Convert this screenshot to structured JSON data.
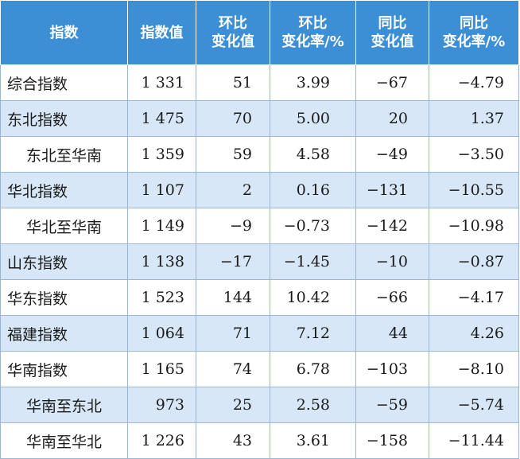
{
  "headers": [
    {
      "line1": "指数",
      "line2": ""
    },
    {
      "line1": "指数值",
      "line2": ""
    },
    {
      "line1": "环比",
      "line2": "变化值"
    },
    {
      "line1": "环比",
      "line2": "变化率/%"
    },
    {
      "line1": "同比",
      "line2": "变化值"
    },
    {
      "line1": "同比",
      "line2": "变化率/%"
    }
  ],
  "rows": [
    {
      "name": "综合指数",
      "sub": false,
      "value": "1 331",
      "mom_change": "51",
      "mom_rate": "3.99",
      "yoy_change": "−67",
      "yoy_rate": "−4.79"
    },
    {
      "name": "东北指数",
      "sub": false,
      "value": "1 475",
      "mom_change": "70",
      "mom_rate": "5.00",
      "yoy_change": "20",
      "yoy_rate": "1.37"
    },
    {
      "name": "东北至华南",
      "sub": true,
      "value": "1 359",
      "mom_change": "59",
      "mom_rate": "4.58",
      "yoy_change": "−49",
      "yoy_rate": "−3.50"
    },
    {
      "name": "华北指数",
      "sub": false,
      "value": "1 107",
      "mom_change": "2",
      "mom_rate": "0.16",
      "yoy_change": "−131",
      "yoy_rate": "−10.55"
    },
    {
      "name": "华北至华南",
      "sub": true,
      "value": "1 149",
      "mom_change": "−9",
      "mom_rate": "−0.73",
      "yoy_change": "−142",
      "yoy_rate": "−10.98"
    },
    {
      "name": "山东指数",
      "sub": false,
      "value": "1 138",
      "mom_change": "−17",
      "mom_rate": "−1.45",
      "yoy_change": "−10",
      "yoy_rate": "−0.87"
    },
    {
      "name": "华东指数",
      "sub": false,
      "value": "1 523",
      "mom_change": "144",
      "mom_rate": "10.42",
      "yoy_change": "−66",
      "yoy_rate": "−4.17"
    },
    {
      "name": "福建指数",
      "sub": false,
      "value": "1 064",
      "mom_change": "71",
      "mom_rate": "7.12",
      "yoy_change": "44",
      "yoy_rate": "4.26"
    },
    {
      "name": "华南指数",
      "sub": false,
      "value": "1 165",
      "mom_change": "74",
      "mom_rate": "6.78",
      "yoy_change": "−103",
      "yoy_rate": "−8.10"
    },
    {
      "name": "华南至东北",
      "sub": true,
      "value": "973",
      "mom_change": "25",
      "mom_rate": "2.58",
      "yoy_change": "−59",
      "yoy_rate": "−5.74"
    },
    {
      "name": "华南至华北",
      "sub": true,
      "value": "1 226",
      "mom_change": "43",
      "mom_rate": "3.61",
      "yoy_change": "−158",
      "yoy_rate": "−11.44"
    }
  ]
}
